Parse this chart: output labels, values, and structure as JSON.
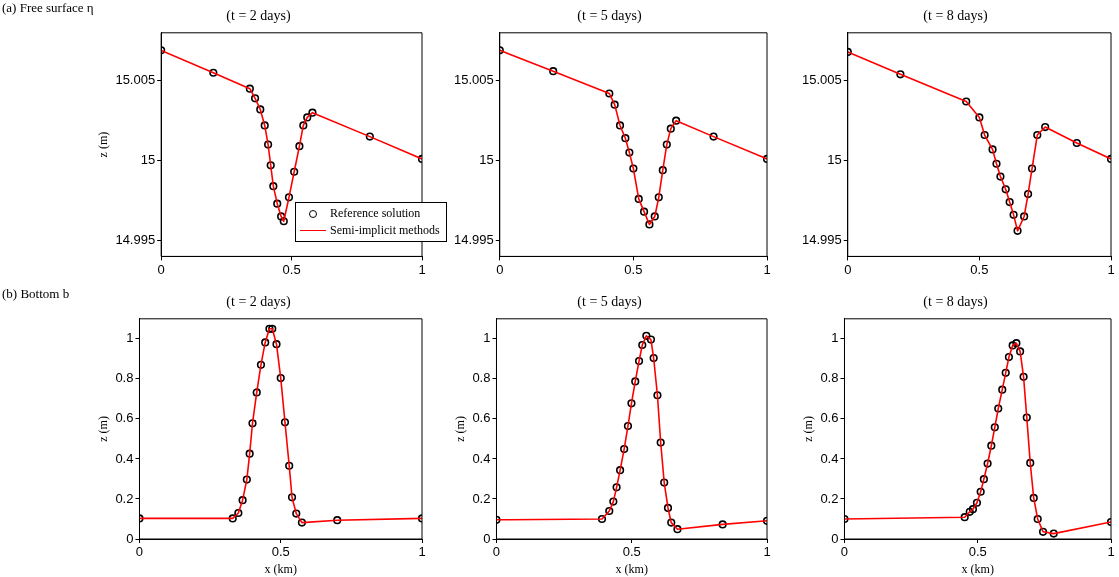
{
  "chart_data": [
    {
      "type": "scatter",
      "title": "(t = 2 days)",
      "ylabel": "z (m)",
      "annotations": [
        "(a) Free surface η"
      ],
      "legend": "bottom right",
      "xlim": [
        0,
        1
      ],
      "xticks": [
        0,
        0.5,
        1
      ],
      "ylim": [
        14.994,
        15.008
      ],
      "yticks": [
        14.995,
        15,
        15.005
      ],
      "grid": false,
      "x": [
        0,
        0.2,
        0.34,
        0.36,
        0.38,
        0.397,
        0.41,
        0.42,
        0.43,
        0.445,
        0.46,
        0.47,
        0.49,
        0.51,
        0.53,
        0.545,
        0.56,
        0.58,
        0.8,
        1
      ],
      "series": [
        {
          "name": "Reference solution",
          "type": "scatter",
          "marker": "circle",
          "color": "#000000",
          "values": [
            15.0069,
            15.0055,
            15.0045,
            15.0039,
            15.0032,
            15.0022,
            15.001,
            14.9997,
            14.9984,
            14.9973,
            14.9965,
            14.9962,
            14.9977,
            14.9993,
            15.0009,
            15.0022,
            15.0027,
            15.003,
            15.0015,
            15.0001
          ]
        },
        {
          "name": "Semi-implicit methods",
          "type": "line",
          "marker": "none",
          "line_style": "solid",
          "color": "#ff0000",
          "values": [
            15.0069,
            15.0055,
            15.0045,
            15.0039,
            15.0032,
            15.0022,
            15.001,
            14.9997,
            14.9984,
            14.9973,
            14.9965,
            14.9962,
            14.9977,
            14.9993,
            15.0009,
            15.0022,
            15.0027,
            15.003,
            15.0015,
            15.0001
          ]
        }
      ]
    },
    {
      "type": "scatter",
      "title": "(t = 5 days)",
      "xlim": [
        0,
        1
      ],
      "xticks": [
        0,
        0.5,
        1
      ],
      "ylim": [
        14.994,
        15.008
      ],
      "yticks": [
        14.995,
        15,
        15.005
      ],
      "grid": false,
      "x": [
        0,
        0.2,
        0.41,
        0.43,
        0.45,
        0.47,
        0.485,
        0.5,
        0.52,
        0.54,
        0.56,
        0.58,
        0.595,
        0.61,
        0.625,
        0.64,
        0.66,
        0.8,
        1
      ],
      "series": [
        {
          "type": "scatter",
          "marker": "circle",
          "color": "#000000",
          "values": [
            15.0069,
            15.0056,
            15.0042,
            15.0035,
            15.0022,
            15.0014,
            15.0005,
            14.9995,
            14.9976,
            14.9968,
            14.996,
            14.9965,
            14.9977,
            14.9994,
            15.001,
            15.002,
            15.0025,
            15.0015,
            15.0001
          ]
        },
        {
          "type": "line",
          "marker": "none",
          "line_style": "solid",
          "color": "#ff0000",
          "values": [
            15.0069,
            15.0056,
            15.0042,
            15.0035,
            15.0022,
            15.0014,
            15.0005,
            14.9995,
            14.9976,
            14.9968,
            14.996,
            14.9965,
            14.9977,
            14.9994,
            15.001,
            15.002,
            15.0025,
            15.0015,
            15.0001
          ]
        }
      ]
    },
    {
      "type": "scatter",
      "title": "(t = 8 days)",
      "xlim": [
        0,
        1
      ],
      "xticks": [
        0,
        0.5,
        1
      ],
      "ylim": [
        14.994,
        15.008
      ],
      "yticks": [
        14.995,
        15,
        15.005
      ],
      "grid": false,
      "x": [
        0,
        0.2,
        0.45,
        0.5,
        0.52,
        0.55,
        0.565,
        0.58,
        0.6,
        0.615,
        0.63,
        0.645,
        0.67,
        0.685,
        0.7,
        0.72,
        0.75,
        0.87,
        1
      ],
      "series": [
        {
          "type": "scatter",
          "marker": "circle",
          "color": "#000000",
          "values": [
            15.0068,
            15.0054,
            15.0037,
            15.0027,
            15.0016,
            15.0007,
            14.9998,
            14.999,
            14.9982,
            14.9974,
            14.9966,
            14.9956,
            14.9965,
            14.9979,
            14.9995,
            15.0016,
            15.0021,
            15.0011,
            15.0001
          ]
        },
        {
          "type": "line",
          "marker": "none",
          "line_style": "solid",
          "color": "#ff0000",
          "values": [
            15.0068,
            15.0054,
            15.0037,
            15.0027,
            15.0016,
            15.0007,
            14.9998,
            14.999,
            14.9982,
            14.9974,
            14.9966,
            14.9956,
            14.9965,
            14.9979,
            14.9995,
            15.0016,
            15.0021,
            15.0011,
            15.0001
          ]
        }
      ]
    },
    {
      "type": "scatter",
      "title": "(t = 2 days)",
      "xlabel": "x (km)",
      "ylabel": "z (m)",
      "annotations": [
        "(b) Bottom b"
      ],
      "xlim": [
        0,
        1
      ],
      "xticks": [
        0,
        0.5,
        1
      ],
      "ylim": [
        0,
        1.1
      ],
      "yticks": [
        0,
        0.2,
        0.4,
        0.6,
        0.8,
        1
      ],
      "grid": false,
      "x": [
        0,
        0.33,
        0.35,
        0.365,
        0.38,
        0.39,
        0.4,
        0.415,
        0.43,
        0.445,
        0.46,
        0.47,
        0.485,
        0.5,
        0.515,
        0.53,
        0.54,
        0.555,
        0.575,
        0.7,
        1
      ],
      "series": [
        {
          "type": "scatter",
          "marker": "circle",
          "color": "#000000",
          "values": [
            0.103,
            0.103,
            0.13,
            0.194,
            0.297,
            0.426,
            0.578,
            0.732,
            0.87,
            0.982,
            1.05,
            1.05,
            0.973,
            0.804,
            0.583,
            0.366,
            0.208,
            0.127,
            0.082,
            0.094,
            0.103
          ]
        },
        {
          "type": "line",
          "marker": "none",
          "line_style": "solid",
          "color": "#ff0000",
          "values": [
            0.103,
            0.103,
            0.13,
            0.194,
            0.297,
            0.426,
            0.578,
            0.732,
            0.87,
            0.982,
            1.05,
            1.05,
            0.973,
            0.804,
            0.583,
            0.366,
            0.208,
            0.127,
            0.082,
            0.094,
            0.103
          ]
        }
      ]
    },
    {
      "type": "scatter",
      "title": "(t = 5 days)",
      "xlabel": "x (km)",
      "ylabel": "z (m)",
      "xlim": [
        0,
        1
      ],
      "xticks": [
        0,
        0.5,
        1
      ],
      "ylim": [
        0,
        1.1
      ],
      "yticks": [
        0,
        0.2,
        0.4,
        0.6,
        0.8,
        1
      ],
      "grid": false,
      "x": [
        0,
        0.39,
        0.417,
        0.432,
        0.444,
        0.457,
        0.472,
        0.486,
        0.499,
        0.513,
        0.527,
        0.539,
        0.554,
        0.571,
        0.581,
        0.595,
        0.607,
        0.62,
        0.634,
        0.646,
        0.669,
        0.836,
        1
      ],
      "series": [
        {
          "type": "scatter",
          "marker": "circle",
          "color": "#000000",
          "values": [
            0.096,
            0.1,
            0.14,
            0.187,
            0.258,
            0.344,
            0.449,
            0.564,
            0.678,
            0.787,
            0.889,
            0.969,
            1.015,
            0.996,
            0.904,
            0.718,
            0.482,
            0.282,
            0.155,
            0.082,
            0.049,
            0.073,
            0.091
          ]
        },
        {
          "type": "line",
          "marker": "none",
          "line_style": "solid",
          "color": "#ff0000",
          "values": [
            0.096,
            0.1,
            0.14,
            0.187,
            0.258,
            0.344,
            0.449,
            0.564,
            0.678,
            0.787,
            0.889,
            0.969,
            1.015,
            0.996,
            0.904,
            0.718,
            0.482,
            0.282,
            0.155,
            0.082,
            0.049,
            0.073,
            0.091
          ]
        }
      ]
    },
    {
      "type": "scatter",
      "title": "(t = 8 days)",
      "xlabel": "x (km)",
      "ylabel": "z (m)",
      "xlim": [
        0,
        1
      ],
      "xticks": [
        0,
        0.5,
        1
      ],
      "ylim": [
        0,
        1.1
      ],
      "yticks": [
        0,
        0.2,
        0.4,
        0.6,
        0.8,
        1
      ],
      "grid": false,
      "x": [
        0,
        0.451,
        0.47,
        0.482,
        0.497,
        0.511,
        0.523,
        0.537,
        0.551,
        0.564,
        0.577,
        0.592,
        0.605,
        0.617,
        0.631,
        0.645,
        0.659,
        0.672,
        0.684,
        0.697,
        0.71,
        0.725,
        0.745,
        0.785,
        1
      ],
      "series": [
        {
          "type": "scatter",
          "marker": "circle",
          "color": "#000000",
          "values": [
            0.1,
            0.109,
            0.136,
            0.149,
            0.181,
            0.236,
            0.299,
            0.377,
            0.466,
            0.558,
            0.652,
            0.746,
            0.83,
            0.909,
            0.967,
            0.978,
            0.937,
            0.81,
            0.607,
            0.38,
            0.205,
            0.1,
            0.036,
            0.027,
            0.085
          ]
        },
        {
          "type": "line",
          "marker": "none",
          "line_style": "solid",
          "color": "#ff0000",
          "values": [
            0.1,
            0.109,
            0.136,
            0.149,
            0.181,
            0.236,
            0.299,
            0.377,
            0.466,
            0.558,
            0.652,
            0.746,
            0.83,
            0.909,
            0.967,
            0.978,
            0.937,
            0.81,
            0.607,
            0.38,
            0.205,
            0.1,
            0.036,
            0.027,
            0.085
          ]
        }
      ]
    }
  ]
}
